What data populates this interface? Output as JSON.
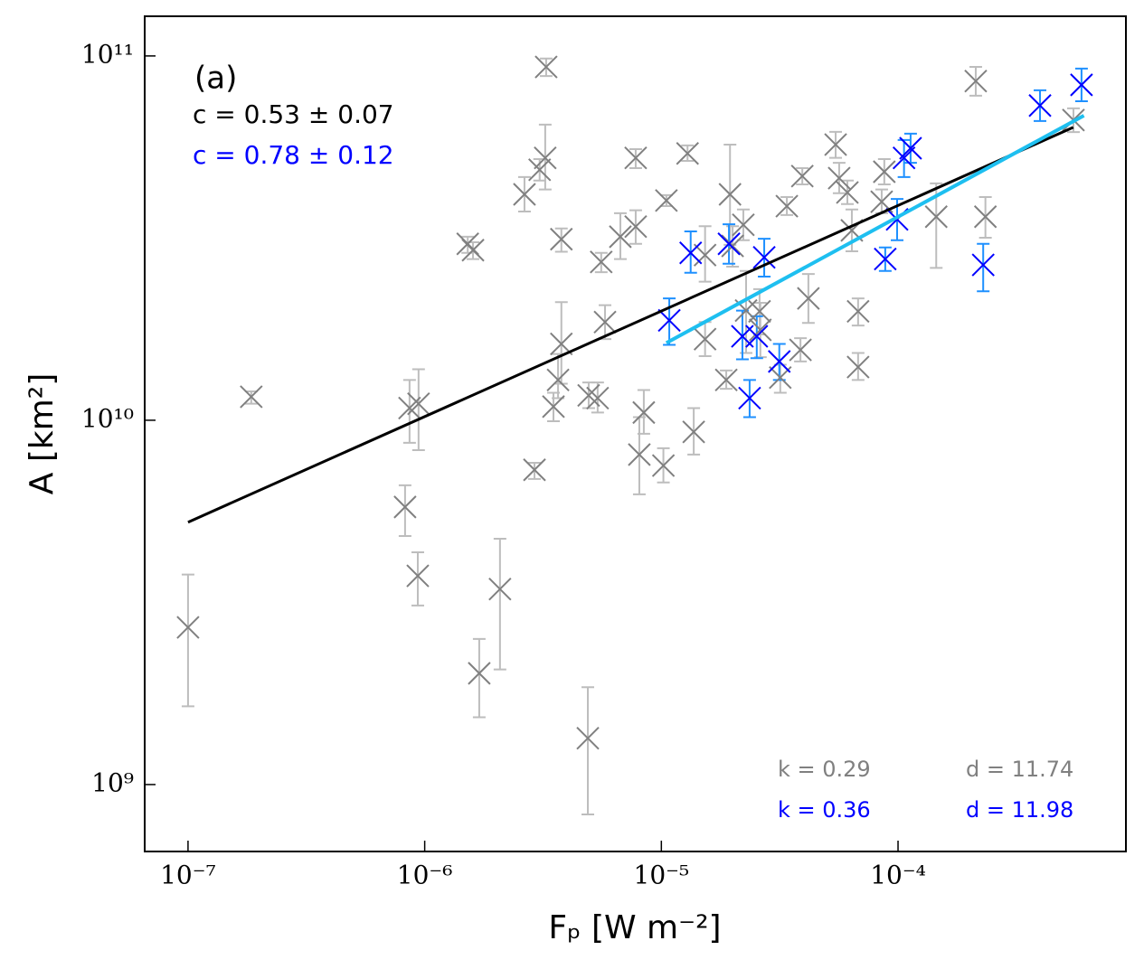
{
  "chart_data": {
    "type": "scatter",
    "xlabel": "Fₚ [W m⁻²]",
    "ylabel": "A [km²]",
    "xscale": "log",
    "yscale": "log",
    "xlim": [
      6.56e-08,
      0.000918
    ],
    "ylim": [
      655000000.0,
      128500000000.0
    ],
    "xticks": [
      {
        "value": 1e-07,
        "label": "10⁻⁷"
      },
      {
        "value": 1e-06,
        "label": "10⁻⁶"
      },
      {
        "value": 1e-05,
        "label": "10⁻⁵"
      },
      {
        "value": 0.0001,
        "label": "10⁻⁴"
      }
    ],
    "yticks": [
      {
        "value": 1000000000.0,
        "label": "10⁹"
      },
      {
        "value": 10000000000.0,
        "label": "10¹⁰"
      },
      {
        "value": 100000000000.0,
        "label": "10¹¹"
      }
    ],
    "series": [
      {
        "color": "#808080",
        "errorbar_color": "#bdbdbd",
        "x": [
          1e-07,
          1.85e-07,
          8.26e-07,
          8.63e-07,
          9.35e-07,
          9.42e-07,
          1.52e-06,
          1.6e-06,
          1.7e-06,
          2.08e-06,
          2.64e-06,
          2.91e-06,
          3.06e-06,
          3.23e-06,
          3.26e-06,
          3.5e-06,
          3.66e-06,
          3.78e-06,
          3.78e-06,
          4.89e-06,
          4.93e-06,
          5.38e-06,
          5.57e-06,
          5.78e-06,
          6.71e-06,
          7.79e-06,
          7.79e-06,
          8.07e-06,
          8.43e-06,
          1.02e-05,
          1.05e-05,
          1.29e-05,
          1.37e-05,
          1.53e-05,
          1.53e-05,
          1.88e-05,
          1.95e-05,
          2e-05,
          2.22e-05,
          2.28e-05,
          2.6e-05,
          2.62e-05,
          3.18e-05,
          3.39e-05,
          3.87e-05,
          3.94e-05,
          4.18e-05,
          5.45e-05,
          5.64e-05,
          6.11e-05,
          6.38e-05,
          6.78e-05,
          6.78e-05,
          8.53e-05,
          8.75e-05,
          0.000145,
          0.000213,
          0.000234,
          0.000551
        ],
        "values": [
          2700000000.0,
          11600000000.0,
          5780000000.0,
          10800000000.0,
          3740000000.0,
          11100000000.0,
          30500000000.0,
          29300000000.0,
          2020000000.0,
          3440000000.0,
          41700000000.0,
          7310000000.0,
          48700000000.0,
          52500000000.0,
          93300000000.0,
          10900000000.0,
          12900000000.0,
          31400000000.0,
          16200000000.0,
          1340000000.0,
          11700000000.0,
          11500000000.0,
          27200000000.0,
          18600000000.0,
          31900000000.0,
          52500000000.0,
          34000000000.0,
          8050000000.0,
          10500000000.0,
          7510000000.0,
          40100000000.0,
          54000000000.0,
          9290000000.0,
          28400000000.0,
          16700000000.0,
          12900000000.0,
          41700000000.0,
          30100000000.0,
          34400000000.0,
          20000000000.0,
          19900000000.0,
          17700000000.0,
          13100000000.0,
          38700000000.0,
          15600000000.0,
          46800000000.0,
          21600000000.0,
          57100000000.0,
          46200000000.0,
          42200000000.0,
          33200000000.0,
          14000000000.0,
          19900000000.0,
          39800000000.0,
          48100000000.0,
          36200000000.0,
          85300000000.0,
          36200000000.0,
          66700000000.0
        ],
        "lower": [
          1640000000.0,
          11100000000.0,
          4810000000.0,
          8670000000.0,
          3100000000.0,
          8280000000.0,
          28800000000.0,
          27700000000.0,
          1530000000.0,
          2070000000.0,
          37400000000.0,
          6900000000.0,
          45500000000.0,
          43000000000.0,
          88100000000.0,
          9940000000.0,
          11500000000.0,
          29000000000.0,
          12600000000.0,
          828000000.0,
          10800000000.0,
          10500000000.0,
          25500000000.0,
          16700000000.0,
          27700000000.0,
          49200000000.0,
          30500000000.0,
          6260000000.0,
          9180000000.0,
          6750000000.0,
          38700000000.0,
          51500000000.0,
          8050000000.0,
          24000000000.0,
          15000000000.0,
          12200000000.0,
          30300000000.0,
          26400000000.0,
          31200000000.0,
          15300000000.0,
          17200000000.0,
          14900000000.0,
          11900000000.0,
          36600000000.0,
          14500000000.0,
          44400000000.0,
          18500000000.0,
          52500000000.0,
          42000000000.0,
          39200000000.0,
          29100000000.0,
          12900000000.0,
          18200000000.0,
          37000000000.0,
          44400000000.0,
          26200000000.0,
          77800000000.0,
          31700000000.0,
          61800000000.0
        ],
        "upper": [
          3770000000.0,
          12000000000.0,
          6630000000.0,
          12900000000.0,
          4340000000.0,
          13800000000.0,
          31900000000.0,
          30800000000.0,
          2510000000.0,
          4730000000.0,
          46500000000.0,
          7640000000.0,
          52100000000.0,
          64800000000.0,
          98400000000.0,
          11900000000.0,
          15200000000.0,
          33600000000.0,
          21100000000.0,
          1850000000.0,
          12700000000.0,
          12700000000.0,
          28800000000.0,
          20700000000.0,
          37000000000.0,
          55500000000.0,
          37700000000.0,
          10200000000.0,
          12100000000.0,
          8380000000.0,
          41500000000.0,
          56800000000.0,
          10800000000.0,
          34100000000.0,
          18600000000.0,
          13700000000.0,
          57100000000.0,
          34100000000.0,
          37900000000.0,
          25700000000.0,
          22900000000.0,
          21000000000.0,
          14200000000.0,
          41000000000.0,
          16800000000.0,
          49200000000.0,
          25200000000.0,
          61900000000.0,
          50900000000.0,
          45500000000.0,
          37900000000.0,
          15300000000.0,
          21600000000.0,
          43000000000.0,
          52100000000.0,
          44700000000.0,
          93300000000.0,
          41000000000.0,
          71800000000.0
        ]
      },
      {
        "color": "#0000ff",
        "errorbar_color": "#1e90ff",
        "x": [
          1.08e-05,
          1.33e-05,
          1.93e-05,
          2.2e-05,
          2.36e-05,
          2.53e-05,
          2.72e-05,
          3.15e-05,
          8.83e-05,
          9.91e-05,
          0.000106,
          0.000113,
          0.000229,
          0.000398,
          0.000596
        ],
        "values": [
          18800000000.0,
          28800000000.0,
          30500000000.0,
          17000000000.0,
          11500000000.0,
          17000000000.0,
          28000000000.0,
          14500000000.0,
          27700000000.0,
          35600000000.0,
          52500000000.0,
          55800000000.0,
          26700000000.0,
          73100000000.0,
          83300000000.0
        ],
        "lower": [
          16100000000.0,
          25400000000.0,
          26900000000.0,
          14700000000.0,
          10200000000.0,
          14800000000.0,
          24800000000.0,
          12900000000.0,
          25700000000.0,
          31200000000.0,
          46500000000.0,
          50900000000.0,
          22600000000.0,
          66300000000.0,
          75100000000.0
        ],
        "upper": [
          21600000000.0,
          33000000000.0,
          34500000000.0,
          20000000000.0,
          12900000000.0,
          19300000000.0,
          31500000000.0,
          16200000000.0,
          29800000000.0,
          40500000000.0,
          58800000000.0,
          61200000000.0,
          30500000000.0,
          80500000000.0,
          92300000000.0
        ]
      }
    ],
    "fits": [
      {
        "color": "#000000",
        "x": [
          1e-07,
          0.00055
        ],
        "values": [
          5250000000.0,
          63700000000.0
        ]
      },
      {
        "color": "#1ebff0",
        "x": [
          1.05e-05,
          0.00061
        ],
        "values": [
          16300000000.0,
          68600000000.0
        ]
      }
    ],
    "annotations": [
      {
        "text": "(a)",
        "color": "#000000"
      },
      {
        "text": "c = 0.53 ± 0.07",
        "color": "#000000"
      },
      {
        "text": "c = 0.78 ± 0.12",
        "color": "#0000ff"
      },
      {
        "text": "k = 0.29",
        "color": "#808080"
      },
      {
        "text": "d = 11.74",
        "color": "#808080"
      },
      {
        "text": "k = 0.36",
        "color": "#0000ff"
      },
      {
        "text": "d = 11.98",
        "color": "#0000ff"
      }
    ]
  }
}
